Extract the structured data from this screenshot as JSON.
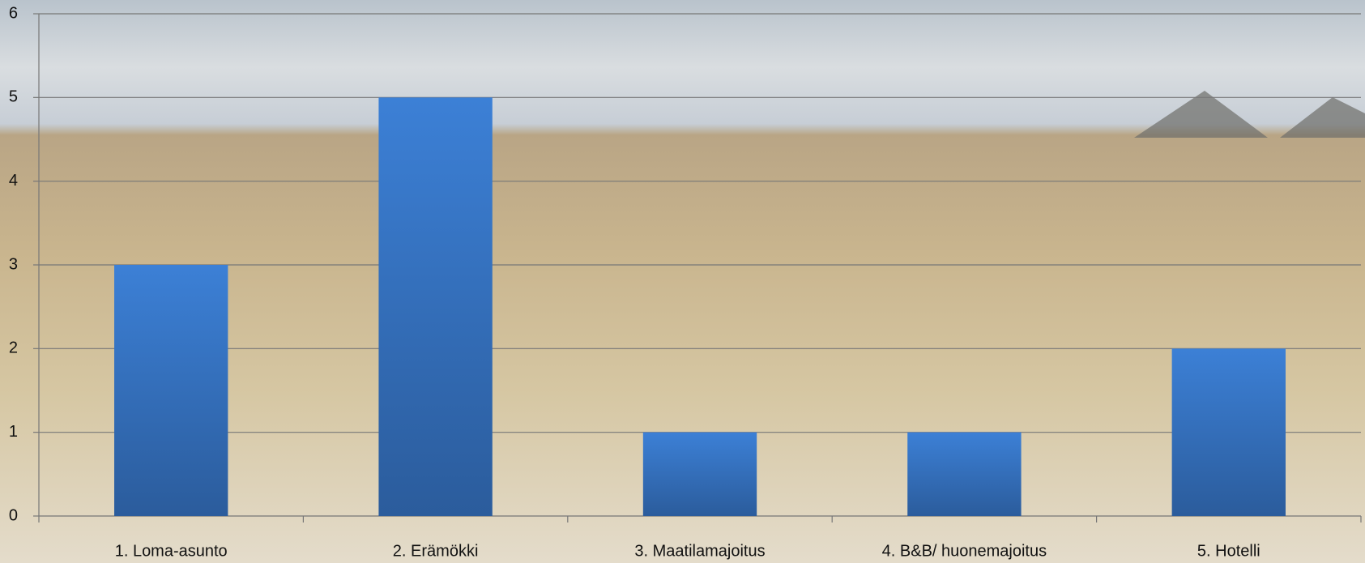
{
  "chart_data": {
    "type": "bar",
    "categories": [
      "1. Loma-asunto",
      "2. Erämökki",
      "3. Maatilamajoitus",
      "4. B&B/ huonemajoitus",
      "5. Hotelli"
    ],
    "values": [
      3,
      5,
      1,
      1,
      2
    ],
    "color": "#3a7bd0",
    "ylim": [
      0,
      6
    ],
    "yticks": [
      0,
      1,
      2,
      3,
      4,
      5,
      6
    ],
    "grid": true
  }
}
